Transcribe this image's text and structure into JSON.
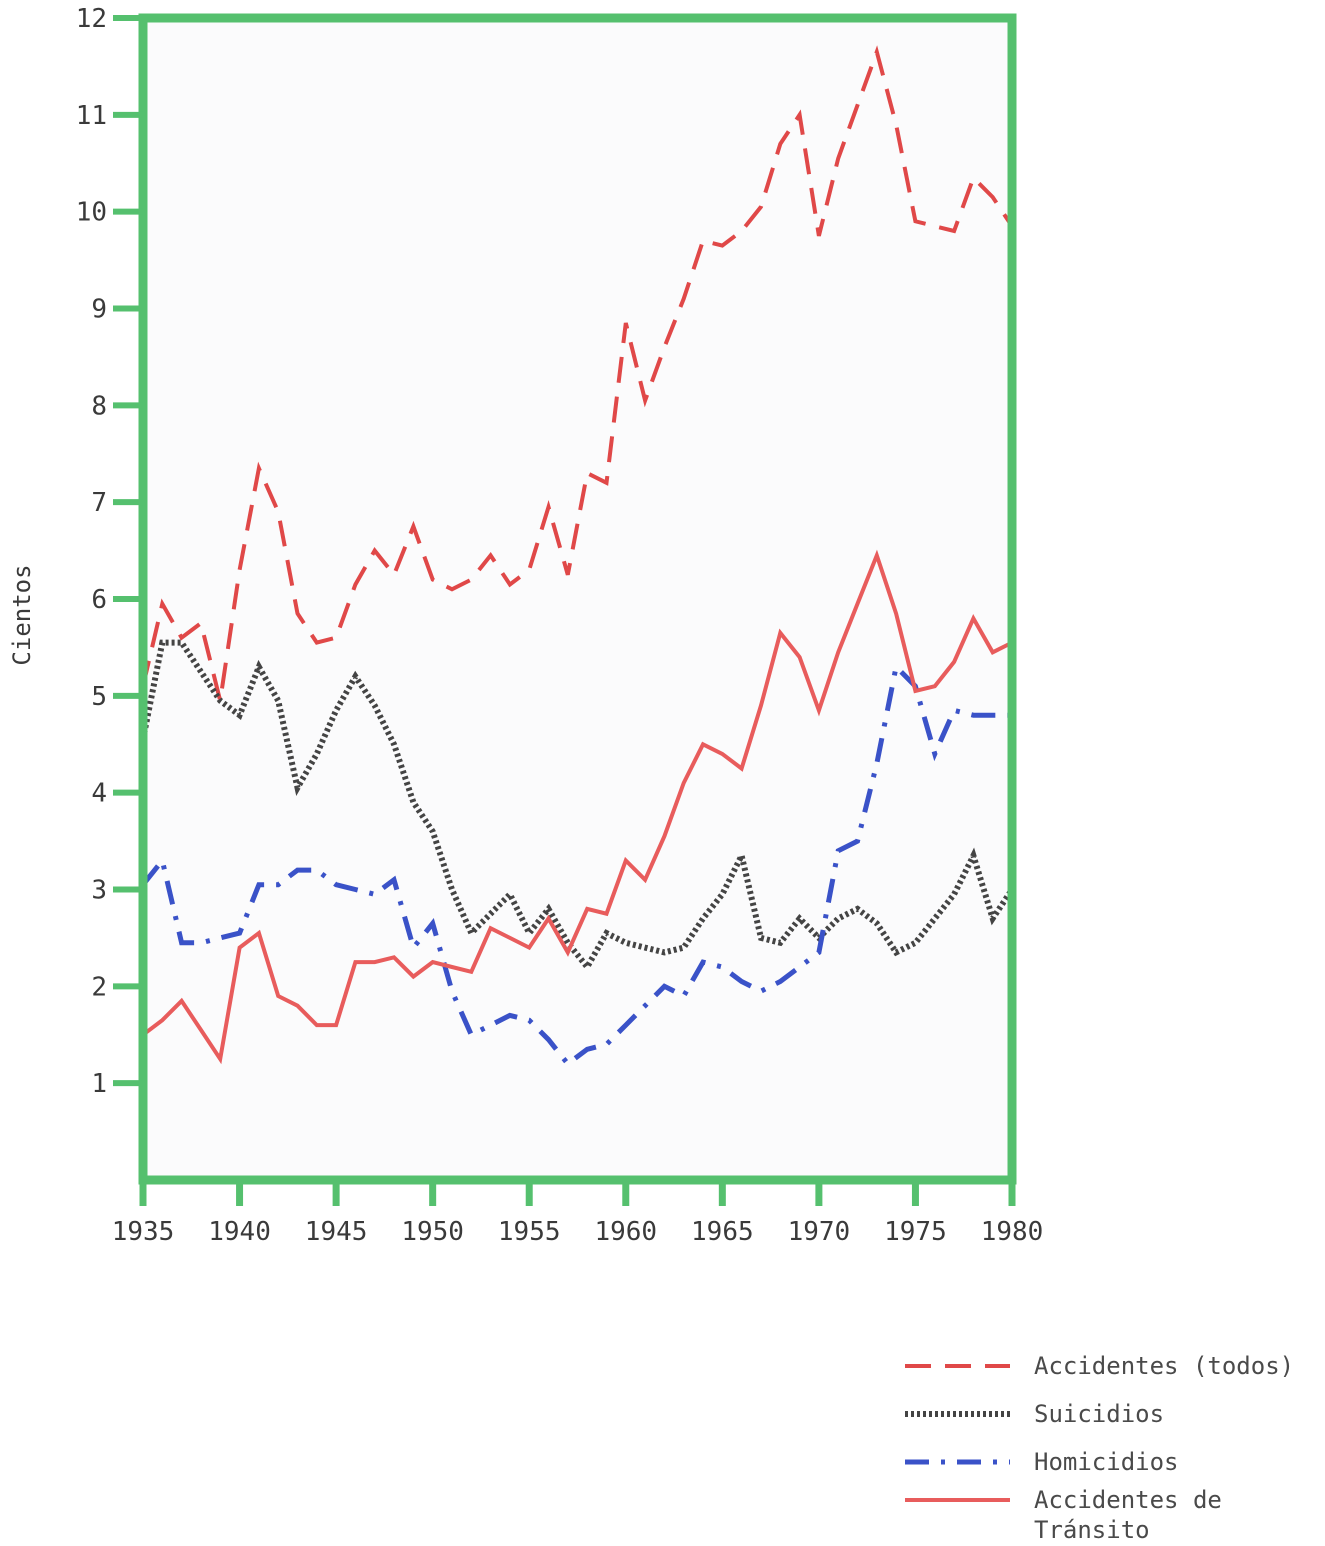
{
  "chart_data": {
    "type": "line",
    "ylabel": "Cientos",
    "xlabel": "",
    "xlim": [
      1935,
      1980
    ],
    "ylim": [
      0,
      12
    ],
    "x_ticks": [
      "1935",
      "1940",
      "1945",
      "1950",
      "1955",
      "1960",
      "1965",
      "1970",
      "1975",
      "1980"
    ],
    "y_ticks": [
      "1",
      "2",
      "3",
      "4",
      "5",
      "6",
      "7",
      "8",
      "9",
      "10",
      "11",
      "12"
    ],
    "legend_position": "bottom-right",
    "frame_color": "#55c06e",
    "series": [
      {
        "name": "Accidentes (todos)",
        "color": "#e04848",
        "style": "dashed",
        "x": [
          1935,
          1936,
          1937,
          1938,
          1939,
          1940,
          1941,
          1942,
          1943,
          1944,
          1945,
          1946,
          1947,
          1948,
          1949,
          1950,
          1951,
          1952,
          1953,
          1954,
          1955,
          1956,
          1957,
          1958,
          1959,
          1960,
          1961,
          1962,
          1963,
          1964,
          1965,
          1966,
          1967,
          1968,
          1969,
          1970,
          1971,
          1972,
          1973,
          1974,
          1975,
          1976,
          1977,
          1978,
          1979,
          1980
        ],
        "values": [
          5.1,
          5.95,
          5.6,
          5.75,
          4.95,
          6.3,
          7.35,
          6.9,
          5.85,
          5.55,
          5.6,
          6.15,
          6.5,
          6.25,
          6.75,
          6.2,
          6.1,
          6.2,
          6.45,
          6.15,
          6.3,
          6.95,
          6.25,
          7.3,
          7.2,
          8.85,
          8.05,
          8.6,
          9.1,
          9.7,
          9.65,
          9.8,
          10.05,
          10.7,
          11.0,
          9.75,
          10.55,
          11.1,
          11.65,
          10.9,
          9.9,
          9.85,
          9.8,
          10.35,
          10.15,
          9.85
        ]
      },
      {
        "name": "Suicidios",
        "color": "#444444",
        "style": "dotted",
        "x": [
          1935,
          1936,
          1937,
          1938,
          1939,
          1940,
          1941,
          1942,
          1943,
          1944,
          1945,
          1946,
          1947,
          1948,
          1949,
          1950,
          1951,
          1952,
          1953,
          1954,
          1955,
          1956,
          1957,
          1958,
          1959,
          1960,
          1961,
          1962,
          1963,
          1964,
          1965,
          1966,
          1967,
          1968,
          1969,
          1970,
          1971,
          1972,
          1973,
          1974,
          1975,
          1976,
          1977,
          1978,
          1979,
          1980
        ],
        "values": [
          4.55,
          5.55,
          5.55,
          5.25,
          4.95,
          4.8,
          5.3,
          4.95,
          4.05,
          4.4,
          4.85,
          5.2,
          4.9,
          4.5,
          3.9,
          3.6,
          3.0,
          2.55,
          2.75,
          2.95,
          2.55,
          2.8,
          2.45,
          2.2,
          2.55,
          2.45,
          2.4,
          2.35,
          2.4,
          2.7,
          2.95,
          3.35,
          2.5,
          2.45,
          2.7,
          2.5,
          2.7,
          2.8,
          2.65,
          2.35,
          2.45,
          2.7,
          2.95,
          3.35,
          2.7,
          3.0
        ]
      },
      {
        "name": "Homicidios",
        "color": "#3a52c8",
        "style": "dashdot",
        "x": [
          1935,
          1936,
          1937,
          1938,
          1939,
          1940,
          1941,
          1942,
          1943,
          1944,
          1945,
          1946,
          1947,
          1948,
          1949,
          1950,
          1951,
          1952,
          1953,
          1954,
          1955,
          1956,
          1957,
          1958,
          1959,
          1960,
          1961,
          1962,
          1963,
          1964,
          1965,
          1966,
          1967,
          1968,
          1969,
          1970,
          1971,
          1972,
          1973,
          1974,
          1975,
          1976,
          1977,
          1978,
          1979,
          1980
        ],
        "values": [
          3.05,
          3.3,
          2.45,
          2.45,
          2.5,
          2.55,
          3.05,
          3.05,
          3.2,
          3.2,
          3.05,
          3.0,
          2.95,
          3.1,
          2.4,
          2.65,
          1.95,
          1.5,
          1.6,
          1.7,
          1.65,
          1.45,
          1.2,
          1.35,
          1.4,
          1.6,
          1.8,
          2.0,
          1.9,
          2.25,
          2.2,
          2.05,
          1.95,
          2.05,
          2.2,
          2.35,
          3.4,
          3.5,
          4.3,
          5.3,
          5.1,
          4.4,
          4.85,
          4.8,
          4.8,
          4.8
        ]
      },
      {
        "name": "Accidentes de Tránsito",
        "color": "#e85c5c",
        "style": "solid",
        "x": [
          1935,
          1936,
          1937,
          1938,
          1939,
          1940,
          1941,
          1942,
          1943,
          1944,
          1945,
          1946,
          1947,
          1948,
          1949,
          1950,
          1951,
          1952,
          1953,
          1954,
          1955,
          1956,
          1957,
          1958,
          1959,
          1960,
          1961,
          1962,
          1963,
          1964,
          1965,
          1966,
          1967,
          1968,
          1969,
          1970,
          1971,
          1972,
          1973,
          1974,
          1975,
          1976,
          1977,
          1978,
          1979,
          1980
        ],
        "values": [
          1.5,
          1.65,
          1.85,
          1.55,
          1.25,
          2.4,
          2.55,
          1.9,
          1.8,
          1.6,
          1.6,
          2.25,
          2.25,
          2.3,
          2.1,
          2.25,
          2.2,
          2.15,
          2.6,
          2.5,
          2.4,
          2.7,
          2.35,
          2.8,
          2.75,
          3.3,
          3.1,
          3.55,
          4.1,
          4.5,
          4.4,
          4.25,
          4.9,
          5.65,
          5.4,
          4.85,
          5.45,
          5.95,
          6.45,
          5.85,
          5.05,
          5.1,
          5.35,
          5.8,
          5.45,
          5.55
        ]
      }
    ]
  }
}
